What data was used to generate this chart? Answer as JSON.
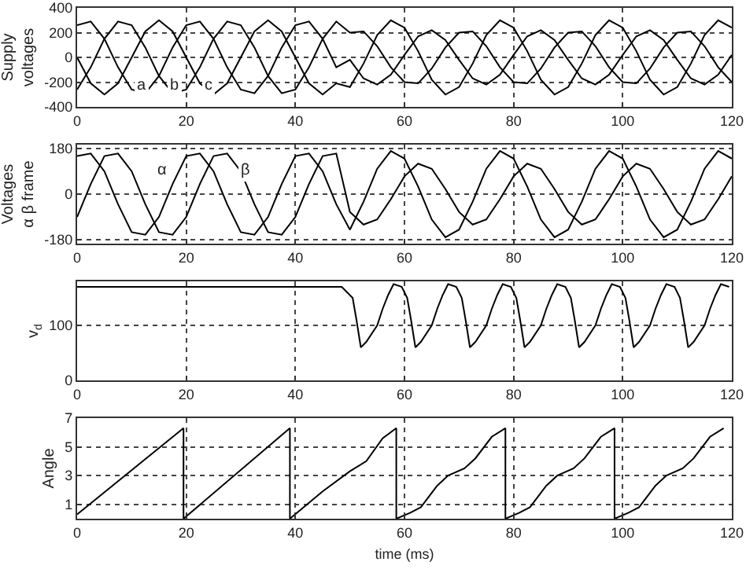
{
  "chart_data": [
    {
      "type": "line",
      "ylabel": "Supply\nvoltages",
      "x": [
        0,
        2.5,
        5,
        7.5,
        10,
        12.5,
        15,
        17.5,
        20,
        22.5,
        25,
        27.5,
        30,
        32.5,
        35,
        37.5,
        40,
        42.5,
        45,
        47.5,
        50,
        52.5,
        55,
        57.5,
        60,
        62.5,
        65,
        67.5,
        70,
        72.5,
        75,
        77.5,
        80,
        82.5,
        85,
        87.5,
        90,
        92.5,
        95,
        97.5,
        100,
        102.5,
        105,
        107.5,
        110,
        112.5,
        115,
        117.5,
        120
      ],
      "series": [
        {
          "color": "#000000",
          "values": [
            260,
            290,
            150,
            -80,
            -260,
            -290,
            -150,
            80,
            260,
            290,
            150,
            -80,
            -260,
            -290,
            -150,
            80,
            260,
            290,
            150,
            -80,
            -20,
            -170,
            -220,
            -140,
            20,
            170,
            220,
            140,
            -20,
            -170,
            -220,
            -140,
            20,
            170,
            220,
            140,
            -20,
            -170,
            -220,
            -140,
            20,
            170,
            220,
            140,
            -20,
            -170,
            -220,
            -140,
            20
          ]
        },
        {
          "color": "#000000",
          "values": [
            -260,
            -80,
            150,
            290,
            260,
            80,
            -150,
            -290,
            -260,
            -80,
            150,
            290,
            260,
            80,
            -150,
            -290,
            -260,
            -80,
            150,
            290,
            200,
            210,
            90,
            -80,
            -200,
            -210,
            -90,
            80,
            200,
            210,
            90,
            -80,
            -200,
            -210,
            -90,
            80,
            200,
            210,
            90,
            -80,
            -200,
            -210,
            -90,
            80,
            200,
            210,
            90,
            -80,
            -200
          ]
        },
        {
          "color": "#000000",
          "values": [
            0,
            -210,
            -300,
            -210,
            0,
            210,
            300,
            210,
            0,
            -210,
            -300,
            -210,
            0,
            210,
            300,
            210,
            0,
            -210,
            -300,
            -210,
            -240,
            -50,
            180,
            300,
            240,
            50,
            -180,
            -300,
            -240,
            -50,
            180,
            300,
            240,
            50,
            -180,
            -300,
            -240,
            -50,
            180,
            300,
            240,
            50,
            -180,
            -300,
            -240,
            -50,
            180,
            300,
            240
          ]
        }
      ],
      "annotations": [
        "a",
        "b",
        "c"
      ],
      "xlim": [
        0,
        120
      ],
      "xticks": [
        0,
        20,
        40,
        60,
        80,
        100,
        120
      ],
      "ylim": [
        -400,
        400
      ],
      "yticks": [
        -400,
        -200,
        0,
        200,
        400
      ],
      "grid": true,
      "marker": "none",
      "line_style": "solid"
    },
    {
      "type": "line",
      "ylabel": "Voltages\nα β frame",
      "x": [
        0,
        2.5,
        5,
        7.5,
        10,
        12.5,
        15,
        17.5,
        20,
        22.5,
        25,
        27.5,
        30,
        32.5,
        35,
        37.5,
        40,
        42.5,
        45,
        47.5,
        50,
        52.5,
        55,
        57.5,
        60,
        62.5,
        65,
        67.5,
        70,
        72.5,
        75,
        77.5,
        80,
        82.5,
        85,
        87.5,
        90,
        92.5,
        95,
        97.5,
        100,
        102.5,
        105,
        107.5,
        110,
        112.5,
        115,
        117.5,
        120
      ],
      "series": [
        {
          "color": "#000000",
          "values": [
            150,
            160,
            90,
            -40,
            -150,
            -160,
            -90,
            40,
            150,
            160,
            90,
            -40,
            -150,
            -160,
            -90,
            40,
            150,
            160,
            90,
            -40,
            -140,
            -30,
            100,
            170,
            140,
            30,
            -100,
            -170,
            -140,
            -30,
            100,
            170,
            140,
            30,
            -100,
            -170,
            -140,
            -30,
            100,
            170,
            140,
            30,
            -100,
            -170,
            -140,
            -30,
            100,
            170,
            140
          ]
        },
        {
          "color": "#000000",
          "values": [
            -90,
            40,
            150,
            160,
            90,
            -40,
            -150,
            -160,
            -90,
            40,
            150,
            160,
            90,
            -40,
            -150,
            -160,
            -90,
            40,
            150,
            160,
            -70,
            -120,
            -100,
            -20,
            70,
            120,
            100,
            20,
            -70,
            -120,
            -100,
            -20,
            70,
            120,
            100,
            20,
            -70,
            -120,
            -100,
            -20,
            70,
            120,
            100,
            20,
            -70,
            -120,
            -100,
            -20,
            70
          ]
        }
      ],
      "annotations": [
        "α",
        "β"
      ],
      "xlim": [
        0,
        120
      ],
      "xticks": [
        0,
        20,
        40,
        60,
        80,
        100,
        120
      ],
      "ylim": [
        -195,
        195
      ],
      "yticks": [
        -180,
        0,
        180
      ],
      "grid": true,
      "marker": "none",
      "line_style": "solid"
    },
    {
      "type": "line",
      "ylabel": "v$_{d}$",
      "series": [
        {
          "color": "#000000",
          "x": [
            0,
            48.5,
            50.5,
            51.2,
            52,
            53,
            55,
            56,
            57,
            58,
            59.5,
            60.5,
            61.2,
            62,
            63,
            65,
            66,
            67,
            68,
            69.5,
            70.5,
            71.2,
            72,
            73,
            75,
            76,
            77,
            78,
            79.5,
            80.5,
            81.2,
            82,
            83,
            85,
            86,
            87,
            88,
            89.5,
            90.5,
            91.2,
            92,
            93,
            95,
            96,
            97,
            98,
            99.5,
            100.5,
            101.2,
            102,
            103,
            105,
            106,
            107,
            108,
            109.5,
            110.5,
            111.2,
            112,
            113,
            115,
            116,
            117,
            118,
            119.5
          ],
          "values": [
            170,
            170,
            150,
            110,
            60,
            70,
            100,
            130,
            155,
            175,
            170,
            150,
            110,
            60,
            70,
            100,
            130,
            155,
            175,
            170,
            150,
            110,
            60,
            70,
            100,
            130,
            155,
            175,
            170,
            150,
            110,
            60,
            70,
            100,
            130,
            155,
            175,
            170,
            150,
            110,
            60,
            70,
            100,
            130,
            155,
            175,
            170,
            150,
            110,
            60,
            70,
            100,
            130,
            155,
            175,
            170,
            150,
            110,
            60,
            70,
            100,
            130,
            155,
            175,
            170
          ]
        }
      ],
      "xlim": [
        0,
        120
      ],
      "xticks": [
        0,
        20,
        40,
        60,
        80,
        100,
        120
      ],
      "ylim": [
        0,
        180
      ],
      "yticks": [
        0,
        100
      ],
      "grid": true,
      "marker": "none",
      "line_style": "solid"
    },
    {
      "type": "line",
      "ylabel": "Angle",
      "xlabel": "time (ms)",
      "series": [
        {
          "color": "#000000",
          "x": [
            0,
            19.5,
            19.5,
            39,
            39,
            45,
            50,
            53,
            56,
            58.5,
            58.5,
            61,
            63,
            66,
            68,
            71,
            73,
            76,
            78.5,
            78.5,
            81,
            83,
            86,
            88,
            91,
            93,
            96,
            98.5,
            98.5,
            101,
            103,
            106,
            108,
            111,
            113,
            116,
            118.5
          ],
          "values": [
            0.3,
            6.3,
            0,
            6.3,
            0,
            1.9,
            3.3,
            4.0,
            5.6,
            6.3,
            0,
            0.4,
            0.8,
            2.3,
            3.0,
            3.5,
            4.2,
            5.7,
            6.3,
            0,
            0.4,
            0.8,
            2.3,
            3.0,
            3.5,
            4.2,
            5.7,
            6.3,
            0,
            0.4,
            0.8,
            2.3,
            3.0,
            3.5,
            4.2,
            5.7,
            6.3
          ]
        }
      ],
      "xlim": [
        0,
        120
      ],
      "xticks": [
        0,
        20,
        40,
        60,
        80,
        100,
        120
      ],
      "ylim": [
        0,
        7
      ],
      "yticks": [
        1,
        3,
        5,
        7
      ],
      "grid": true,
      "marker": "none",
      "line_style": "solid"
    }
  ]
}
